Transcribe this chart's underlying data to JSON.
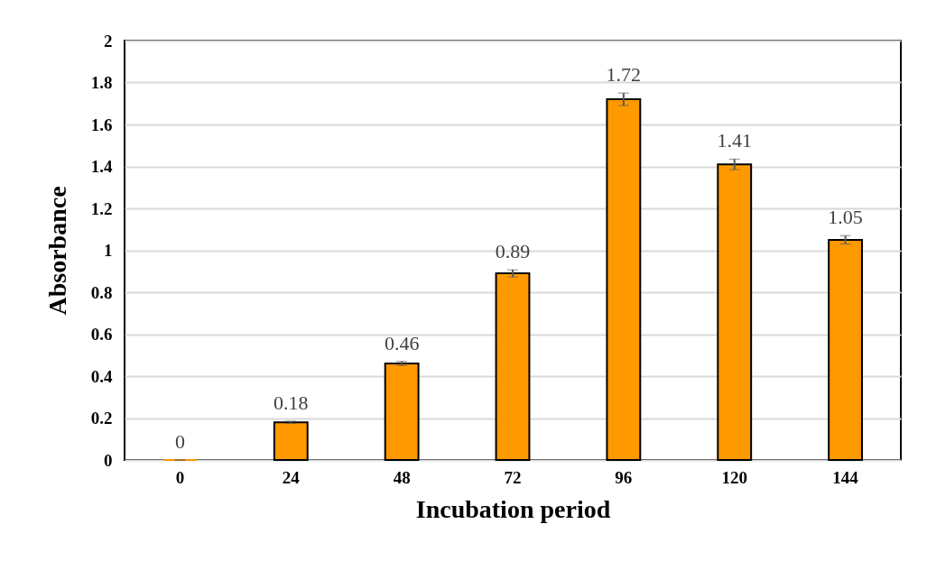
{
  "chart_data": {
    "type": "bar",
    "xlabel": "Incubation period",
    "ylabel": "Absorbance",
    "categories": [
      "0",
      "24",
      "48",
      "72",
      "96",
      "120",
      "144"
    ],
    "values": [
      0,
      0.18,
      0.46,
      0.89,
      1.72,
      1.41,
      1.05
    ],
    "errors": [
      0,
      0.005,
      0.01,
      0.017,
      0.03,
      0.025,
      0.02
    ],
    "color": "#ff9900",
    "ylim": [
      0,
      2
    ],
    "yticks": [
      0,
      0.2,
      0.4,
      0.6,
      0.8,
      1,
      1.2,
      1.4,
      1.6,
      1.8,
      2
    ],
    "grid": "y",
    "data_labels": true
  }
}
